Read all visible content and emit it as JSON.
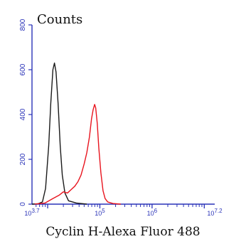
{
  "chart_data": {
    "type": "line",
    "title": "Counts",
    "xlabel": "Cyclin H-Alexa Fluor 488",
    "ylabel": "",
    "x_scale": "log",
    "xlim_log10": [
      3.7,
      7.2
    ],
    "ylim": [
      0,
      800
    ],
    "grid": false,
    "legend": "none",
    "x_ticks": [
      {
        "label": "10^3.7",
        "exp": "3.7"
      },
      {
        "label": "10^5",
        "exp": "5"
      },
      {
        "label": "10^6",
        "exp": "6"
      },
      {
        "label": "10^7.2",
        "exp": "7.2"
      }
    ],
    "y_ticks": [
      "0",
      "200",
      "400",
      "600",
      "800"
    ],
    "series": [
      {
        "color": "#1a1a1a",
        "points": [
          [
            3.7,
            0
          ],
          [
            3.82,
            2
          ],
          [
            3.9,
            10
          ],
          [
            3.96,
            70
          ],
          [
            4.02,
            260
          ],
          [
            4.06,
            450
          ],
          [
            4.1,
            600
          ],
          [
            4.13,
            630
          ],
          [
            4.16,
            590
          ],
          [
            4.2,
            450
          ],
          [
            4.24,
            260
          ],
          [
            4.28,
            130
          ],
          [
            4.33,
            50
          ],
          [
            4.4,
            15
          ],
          [
            4.55,
            5
          ],
          [
            4.75,
            0
          ]
        ]
      },
      {
        "color": "#e8141e",
        "points": [
          [
            3.75,
            0
          ],
          [
            3.95,
            5
          ],
          [
            4.1,
            25
          ],
          [
            4.22,
            40
          ],
          [
            4.3,
            55
          ],
          [
            4.38,
            50
          ],
          [
            4.45,
            65
          ],
          [
            4.52,
            80
          ],
          [
            4.58,
            100
          ],
          [
            4.64,
            130
          ],
          [
            4.7,
            180
          ],
          [
            4.75,
            230
          ],
          [
            4.8,
            300
          ],
          [
            4.84,
            380
          ],
          [
            4.87,
            420
          ],
          [
            4.9,
            445
          ],
          [
            4.92,
            430
          ],
          [
            4.95,
            360
          ],
          [
            4.98,
            250
          ],
          [
            5.02,
            140
          ],
          [
            5.06,
            60
          ],
          [
            5.1,
            25
          ],
          [
            5.15,
            10
          ],
          [
            5.25,
            3
          ],
          [
            5.4,
            0
          ]
        ]
      }
    ]
  }
}
